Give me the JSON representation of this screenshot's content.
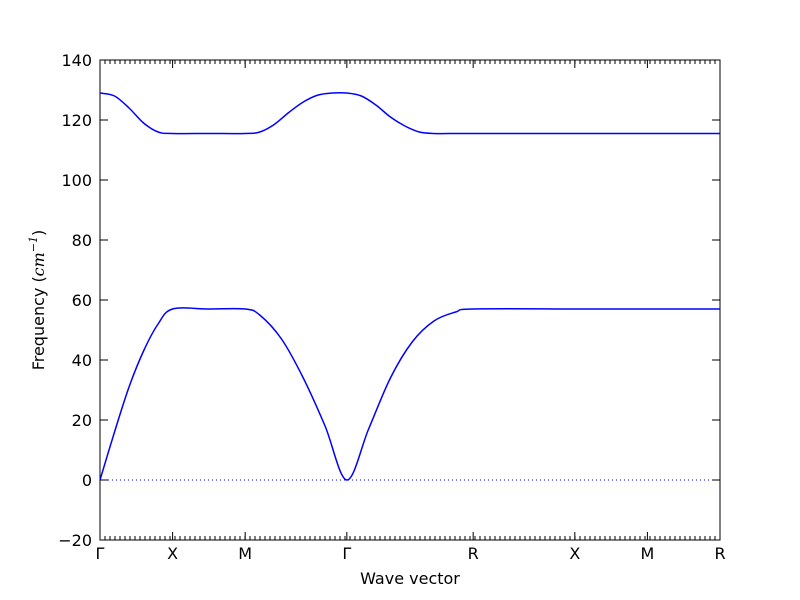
{
  "chart_data": {
    "type": "line",
    "xlabel": "Wave vector",
    "ylabel": {
      "text": "Frequency (",
      "math": "cm",
      "exp": "−1",
      "close": ")"
    },
    "ylim": [
      -20,
      140
    ],
    "y_ticks": [
      "−20",
      "0",
      "20",
      "40",
      "60",
      "80",
      "100",
      "120",
      "140"
    ],
    "x_ticks": [
      {
        "label": "Γ",
        "x": 0
      },
      {
        "label": "X",
        "x": 0.5
      },
      {
        "label": "M",
        "x": 1.0
      },
      {
        "label": "Γ",
        "x": 1.7
      },
      {
        "label": "R",
        "x": 2.57
      },
      {
        "label": "X",
        "x": 3.27
      },
      {
        "label": "M",
        "x": 3.77
      },
      {
        "label": "R",
        "x": 4.27
      }
    ],
    "xlim": [
      0,
      4.27
    ],
    "zero_line": {
      "y": 0,
      "style": "dotted",
      "color": "#0000ff"
    },
    "line_color": "#0000ff",
    "series": [
      {
        "x": [
          0,
          0.1,
          0.2,
          0.3,
          0.4,
          0.5,
          0.75,
          1.0,
          1.1,
          1.25,
          1.4,
          1.55,
          1.7,
          1.85,
          2.0,
          2.15,
          2.3,
          2.45,
          2.57,
          3.27,
          3.77,
          4.27
        ],
        "values": [
          0,
          16,
          31,
          43,
          52,
          57,
          57,
          57,
          55,
          47,
          34,
          18,
          0,
          17,
          34,
          46,
          53,
          56,
          57,
          57,
          57,
          57
        ]
      },
      {
        "x": [
          0,
          0.1,
          0.2,
          0.3,
          0.4,
          0.5,
          0.75,
          1.0,
          1.1,
          1.2,
          1.3,
          1.4,
          1.5,
          1.6,
          1.7,
          1.8,
          1.9,
          2.0,
          2.1,
          2.2,
          2.3,
          2.4,
          2.57,
          3.27,
          3.77,
          4.27
        ],
        "values": [
          129,
          128,
          124,
          119,
          116,
          115.5,
          115.5,
          115.5,
          116,
          118.5,
          122.5,
          126,
          128.3,
          129,
          129,
          128,
          125,
          121,
          118,
          116,
          115.5,
          115.5,
          115.5,
          115.5,
          115.5,
          115.5
        ]
      }
    ]
  }
}
